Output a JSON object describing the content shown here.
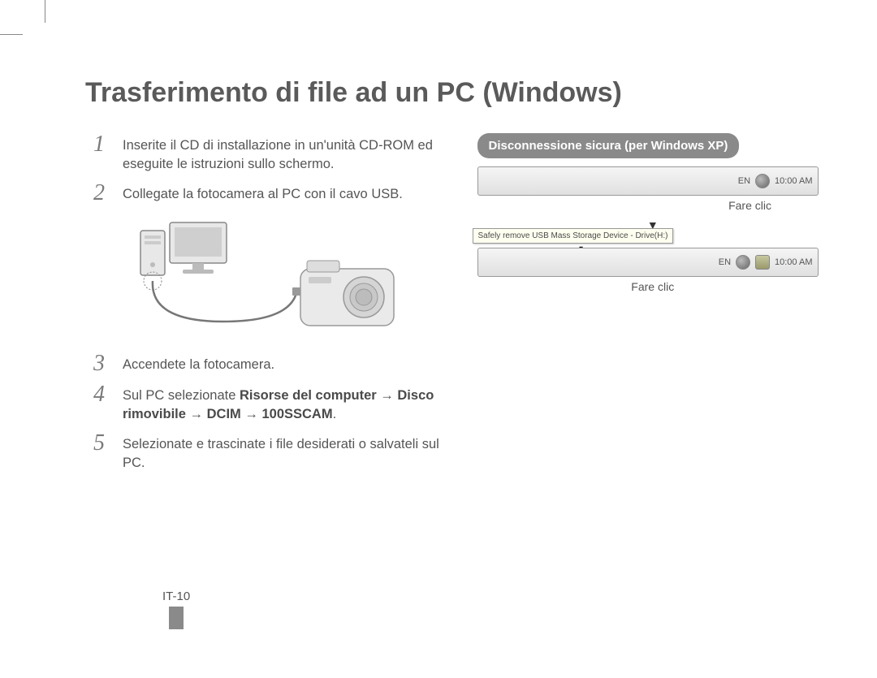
{
  "title": "Trasferimento di file ad un PC (Windows)",
  "steps": [
    {
      "num": "1",
      "text": "Inserite il CD di installazione in un'unità CD-ROM ed eseguite le istruzioni sullo schermo."
    },
    {
      "num": "2",
      "text": "Collegate la fotocamera al PC con il cavo USB."
    },
    {
      "num": "3",
      "text": "Accendete la fotocamera."
    },
    {
      "num": "4",
      "html": "Sul PC selezionate <b>Risorse del computer</b> → <b>Disco rimovibile</b> → <b>DCIM</b> → <b>100SSCAM</b>."
    },
    {
      "num": "5",
      "text": "Selezionate e trascinate i file desiderati o salvateli sul PC."
    }
  ],
  "callout": "Disconnessione sicura (per Windows XP)",
  "taskbar": {
    "lang": "EN",
    "clock": "10:00 AM",
    "balloon": "Safely remove USB Mass Storage Device - Drive(H:)"
  },
  "click_label": "Fare clic",
  "arrow": "▼",
  "page_number": "IT-10",
  "colors": {
    "title": "#5a5a5a",
    "body_text": "#555555",
    "step_num": "#7a7a7a",
    "callout_bg": "#8a8a8a",
    "callout_text": "#ffffff",
    "page_bar": "#8a8a8a"
  },
  "typography": {
    "title_size_pt": 26,
    "body_size_pt": 12,
    "step_num_size_pt": 21,
    "callout_size_pt": 11
  }
}
